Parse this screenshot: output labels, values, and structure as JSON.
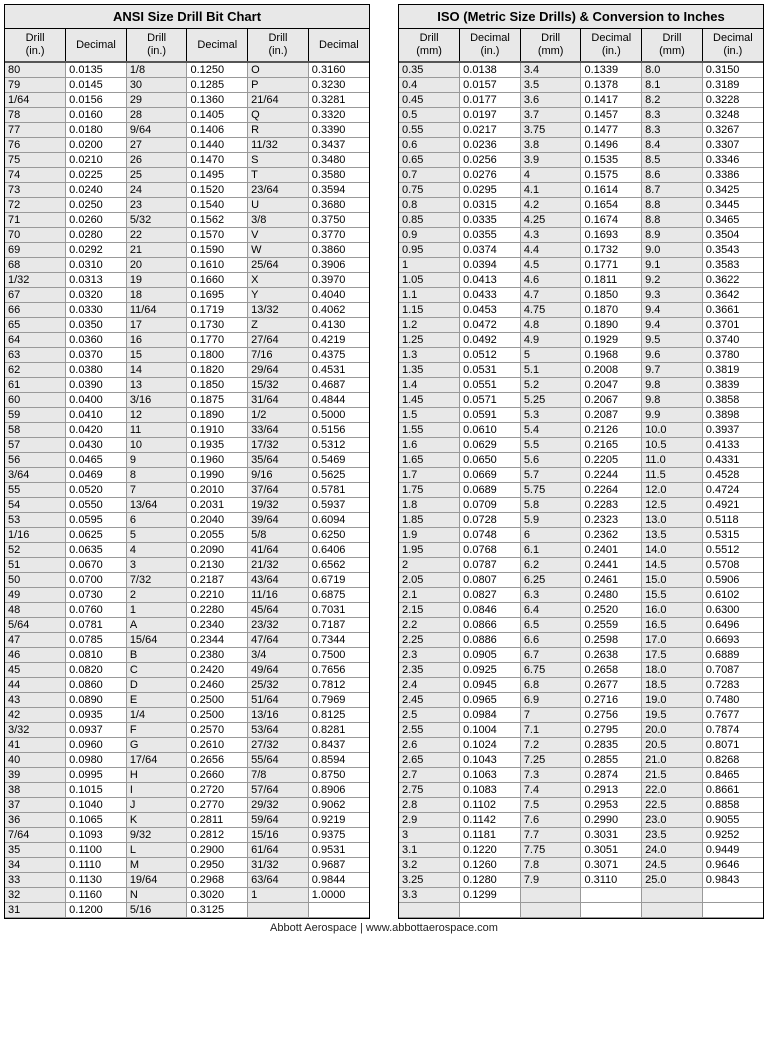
{
  "ansi": {
    "title": "ANSI Size Drill Bit Chart",
    "columns": [
      "Drill (in.)",
      "Decimal",
      "Drill (in.)",
      "Decimal",
      "Drill (in.)",
      "Decimal"
    ],
    "rows": [
      [
        "80",
        "0.0135",
        "1/8",
        "0.1250",
        "O",
        "0.3160"
      ],
      [
        "79",
        "0.0145",
        "30",
        "0.1285",
        "P",
        "0.3230"
      ],
      [
        "1/64",
        "0.0156",
        "29",
        "0.1360",
        "21/64",
        "0.3281"
      ],
      [
        "78",
        "0.0160",
        "28",
        "0.1405",
        "Q",
        "0.3320"
      ],
      [
        "77",
        "0.0180",
        "9/64",
        "0.1406",
        "R",
        "0.3390"
      ],
      [
        "76",
        "0.0200",
        "27",
        "0.1440",
        "11/32",
        "0.3437"
      ],
      [
        "75",
        "0.0210",
        "26",
        "0.1470",
        "S",
        "0.3480"
      ],
      [
        "74",
        "0.0225",
        "25",
        "0.1495",
        "T",
        "0.3580"
      ],
      [
        "73",
        "0.0240",
        "24",
        "0.1520",
        "23/64",
        "0.3594"
      ],
      [
        "72",
        "0.0250",
        "23",
        "0.1540",
        "U",
        "0.3680"
      ],
      [
        "71",
        "0.0260",
        "5/32",
        "0.1562",
        "3/8",
        "0.3750"
      ],
      [
        "70",
        "0.0280",
        "22",
        "0.1570",
        "V",
        "0.3770"
      ],
      [
        "69",
        "0.0292",
        "21",
        "0.1590",
        "W",
        "0.3860"
      ],
      [
        "68",
        "0.0310",
        "20",
        "0.1610",
        "25/64",
        "0.3906"
      ],
      [
        "1/32",
        "0.0313",
        "19",
        "0.1660",
        "X",
        "0.3970"
      ],
      [
        "67",
        "0.0320",
        "18",
        "0.1695",
        "Y",
        "0.4040"
      ],
      [
        "66",
        "0.0330",
        "11/64",
        "0.1719",
        "13/32",
        "0.4062"
      ],
      [
        "65",
        "0.0350",
        "17",
        "0.1730",
        "Z",
        "0.4130"
      ],
      [
        "64",
        "0.0360",
        "16",
        "0.1770",
        "27/64",
        "0.4219"
      ],
      [
        "63",
        "0.0370",
        "15",
        "0.1800",
        "7/16",
        "0.4375"
      ],
      [
        "62",
        "0.0380",
        "14",
        "0.1820",
        "29/64",
        "0.4531"
      ],
      [
        "61",
        "0.0390",
        "13",
        "0.1850",
        "15/32",
        "0.4687"
      ],
      [
        "60",
        "0.0400",
        "3/16",
        "0.1875",
        "31/64",
        "0.4844"
      ],
      [
        "59",
        "0.0410",
        "12",
        "0.1890",
        "1/2",
        "0.5000"
      ],
      [
        "58",
        "0.0420",
        "11",
        "0.1910",
        "33/64",
        "0.5156"
      ],
      [
        "57",
        "0.0430",
        "10",
        "0.1935",
        "17/32",
        "0.5312"
      ],
      [
        "56",
        "0.0465",
        "9",
        "0.1960",
        "35/64",
        "0.5469"
      ],
      [
        "3/64",
        "0.0469",
        "8",
        "0.1990",
        "9/16",
        "0.5625"
      ],
      [
        "55",
        "0.0520",
        "7",
        "0.2010",
        "37/64",
        "0.5781"
      ],
      [
        "54",
        "0.0550",
        "13/64",
        "0.2031",
        "19/32",
        "0.5937"
      ],
      [
        "53",
        "0.0595",
        "6",
        "0.2040",
        "39/64",
        "0.6094"
      ],
      [
        "1/16",
        "0.0625",
        "5",
        "0.2055",
        "5/8",
        "0.6250"
      ],
      [
        "52",
        "0.0635",
        "4",
        "0.2090",
        "41/64",
        "0.6406"
      ],
      [
        "51",
        "0.0670",
        "3",
        "0.2130",
        "21/32",
        "0.6562"
      ],
      [
        "50",
        "0.0700",
        "7/32",
        "0.2187",
        "43/64",
        "0.6719"
      ],
      [
        "49",
        "0.0730",
        "2",
        "0.2210",
        "11/16",
        "0.6875"
      ],
      [
        "48",
        "0.0760",
        "1",
        "0.2280",
        "45/64",
        "0.7031"
      ],
      [
        "5/64",
        "0.0781",
        "A",
        "0.2340",
        "23/32",
        "0.7187"
      ],
      [
        "47",
        "0.0785",
        "15/64",
        "0.2344",
        "47/64",
        "0.7344"
      ],
      [
        "46",
        "0.0810",
        "B",
        "0.2380",
        "3/4",
        "0.7500"
      ],
      [
        "45",
        "0.0820",
        "C",
        "0.2420",
        "49/64",
        "0.7656"
      ],
      [
        "44",
        "0.0860",
        "D",
        "0.2460",
        "25/32",
        "0.7812"
      ],
      [
        "43",
        "0.0890",
        "E",
        "0.2500",
        "51/64",
        "0.7969"
      ],
      [
        "42",
        "0.0935",
        "1/4",
        "0.2500",
        "13/16",
        "0.8125"
      ],
      [
        "3/32",
        "0.0937",
        "F",
        "0.2570",
        "53/64",
        "0.8281"
      ],
      [
        "41",
        "0.0960",
        "G",
        "0.2610",
        "27/32",
        "0.8437"
      ],
      [
        "40",
        "0.0980",
        "17/64",
        "0.2656",
        "55/64",
        "0.8594"
      ],
      [
        "39",
        "0.0995",
        "H",
        "0.2660",
        "7/8",
        "0.8750"
      ],
      [
        "38",
        "0.1015",
        "I",
        "0.2720",
        "57/64",
        "0.8906"
      ],
      [
        "37",
        "0.1040",
        "J",
        "0.2770",
        "29/32",
        "0.9062"
      ],
      [
        "36",
        "0.1065",
        "K",
        "0.2811",
        "59/64",
        "0.9219"
      ],
      [
        "7/64",
        "0.1093",
        "9/32",
        "0.2812",
        "15/16",
        "0.9375"
      ],
      [
        "35",
        "0.1100",
        "L",
        "0.2900",
        "61/64",
        "0.9531"
      ],
      [
        "34",
        "0.1110",
        "M",
        "0.2950",
        "31/32",
        "0.9687"
      ],
      [
        "33",
        "0.1130",
        "19/64",
        "0.2968",
        "63/64",
        "0.9844"
      ],
      [
        "32",
        "0.1160",
        "N",
        "0.3020",
        "1",
        "1.0000"
      ],
      [
        "31",
        "0.1200",
        "5/16",
        "0.3125",
        "",
        ""
      ]
    ]
  },
  "iso": {
    "title": "ISO (Metric Size Drills) & Conversion to Inches",
    "columns": [
      "Drill (mm)",
      "Decimal (in.)",
      "Drill (mm)",
      "Decimal (in.)",
      "Drill (mm)",
      "Decimal (in.)"
    ],
    "rows": [
      [
        "0.35",
        "0.0138",
        "3.4",
        "0.1339",
        "8.0",
        "0.3150"
      ],
      [
        "0.4",
        "0.0157",
        "3.5",
        "0.1378",
        "8.1",
        "0.3189"
      ],
      [
        "0.45",
        "0.0177",
        "3.6",
        "0.1417",
        "8.2",
        "0.3228"
      ],
      [
        "0.5",
        "0.0197",
        "3.7",
        "0.1457",
        "8.3",
        "0.3248"
      ],
      [
        "0.55",
        "0.0217",
        "3.75",
        "0.1477",
        "8.3",
        "0.3267"
      ],
      [
        "0.6",
        "0.0236",
        "3.8",
        "0.1496",
        "8.4",
        "0.3307"
      ],
      [
        "0.65",
        "0.0256",
        "3.9",
        "0.1535",
        "8.5",
        "0.3346"
      ],
      [
        "0.7",
        "0.0276",
        "4",
        "0.1575",
        "8.6",
        "0.3386"
      ],
      [
        "0.75",
        "0.0295",
        "4.1",
        "0.1614",
        "8.7",
        "0.3425"
      ],
      [
        "0.8",
        "0.0315",
        "4.2",
        "0.1654",
        "8.8",
        "0.3445"
      ],
      [
        "0.85",
        "0.0335",
        "4.25",
        "0.1674",
        "8.8",
        "0.3465"
      ],
      [
        "0.9",
        "0.0355",
        "4.3",
        "0.1693",
        "8.9",
        "0.3504"
      ],
      [
        "0.95",
        "0.0374",
        "4.4",
        "0.1732",
        "9.0",
        "0.3543"
      ],
      [
        "1",
        "0.0394",
        "4.5",
        "0.1771",
        "9.1",
        "0.3583"
      ],
      [
        "1.05",
        "0.0413",
        "4.6",
        "0.1811",
        "9.2",
        "0.3622"
      ],
      [
        "1.1",
        "0.0433",
        "4.7",
        "0.1850",
        "9.3",
        "0.3642"
      ],
      [
        "1.15",
        "0.0453",
        "4.75",
        "0.1870",
        "9.4",
        "0.3661"
      ],
      [
        "1.2",
        "0.0472",
        "4.8",
        "0.1890",
        "9.4",
        "0.3701"
      ],
      [
        "1.25",
        "0.0492",
        "4.9",
        "0.1929",
        "9.5",
        "0.3740"
      ],
      [
        "1.3",
        "0.0512",
        "5",
        "0.1968",
        "9.6",
        "0.3780"
      ],
      [
        "1.35",
        "0.0531",
        "5.1",
        "0.2008",
        "9.7",
        "0.3819"
      ],
      [
        "1.4",
        "0.0551",
        "5.2",
        "0.2047",
        "9.8",
        "0.3839"
      ],
      [
        "1.45",
        "0.0571",
        "5.25",
        "0.2067",
        "9.8",
        "0.3858"
      ],
      [
        "1.5",
        "0.0591",
        "5.3",
        "0.2087",
        "9.9",
        "0.3898"
      ],
      [
        "1.55",
        "0.0610",
        "5.4",
        "0.2126",
        "10.0",
        "0.3937"
      ],
      [
        "1.6",
        "0.0629",
        "5.5",
        "0.2165",
        "10.5",
        "0.4133"
      ],
      [
        "1.65",
        "0.0650",
        "5.6",
        "0.2205",
        "11.0",
        "0.4331"
      ],
      [
        "1.7",
        "0.0669",
        "5.7",
        "0.2244",
        "11.5",
        "0.4528"
      ],
      [
        "1.75",
        "0.0689",
        "5.75",
        "0.2264",
        "12.0",
        "0.4724"
      ],
      [
        "1.8",
        "0.0709",
        "5.8",
        "0.2283",
        "12.5",
        "0.4921"
      ],
      [
        "1.85",
        "0.0728",
        "5.9",
        "0.2323",
        "13.0",
        "0.5118"
      ],
      [
        "1.9",
        "0.0748",
        "6",
        "0.2362",
        "13.5",
        "0.5315"
      ],
      [
        "1.95",
        "0.0768",
        "6.1",
        "0.2401",
        "14.0",
        "0.5512"
      ],
      [
        "2",
        "0.0787",
        "6.2",
        "0.2441",
        "14.5",
        "0.5708"
      ],
      [
        "2.05",
        "0.0807",
        "6.25",
        "0.2461",
        "15.0",
        "0.5906"
      ],
      [
        "2.1",
        "0.0827",
        "6.3",
        "0.2480",
        "15.5",
        "0.6102"
      ],
      [
        "2.15",
        "0.0846",
        "6.4",
        "0.2520",
        "16.0",
        "0.6300"
      ],
      [
        "2.2",
        "0.0866",
        "6.5",
        "0.2559",
        "16.5",
        "0.6496"
      ],
      [
        "2.25",
        "0.0886",
        "6.6",
        "0.2598",
        "17.0",
        "0.6693"
      ],
      [
        "2.3",
        "0.0905",
        "6.7",
        "0.2638",
        "17.5",
        "0.6889"
      ],
      [
        "2.35",
        "0.0925",
        "6.75",
        "0.2658",
        "18.0",
        "0.7087"
      ],
      [
        "2.4",
        "0.0945",
        "6.8",
        "0.2677",
        "18.5",
        "0.7283"
      ],
      [
        "2.45",
        "0.0965",
        "6.9",
        "0.2716",
        "19.0",
        "0.7480"
      ],
      [
        "2.5",
        "0.0984",
        "7",
        "0.2756",
        "19.5",
        "0.7677"
      ],
      [
        "2.55",
        "0.1004",
        "7.1",
        "0.2795",
        "20.0",
        "0.7874"
      ],
      [
        "2.6",
        "0.1024",
        "7.2",
        "0.2835",
        "20.5",
        "0.8071"
      ],
      [
        "2.65",
        "0.1043",
        "7.25",
        "0.2855",
        "21.0",
        "0.8268"
      ],
      [
        "2.7",
        "0.1063",
        "7.3",
        "0.2874",
        "21.5",
        "0.8465"
      ],
      [
        "2.75",
        "0.1083",
        "7.4",
        "0.2913",
        "22.0",
        "0.8661"
      ],
      [
        "2.8",
        "0.1102",
        "7.5",
        "0.2953",
        "22.5",
        "0.8858"
      ],
      [
        "2.9",
        "0.1142",
        "7.6",
        "0.2990",
        "23.0",
        "0.9055"
      ],
      [
        "3",
        "0.1181",
        "7.7",
        "0.3031",
        "23.5",
        "0.9252"
      ],
      [
        "3.1",
        "0.1220",
        "7.75",
        "0.3051",
        "24.0",
        "0.9449"
      ],
      [
        "3.2",
        "0.1260",
        "7.8",
        "0.3071",
        "24.5",
        "0.9646"
      ],
      [
        "3.25",
        "0.1280",
        "7.9",
        "0.3110",
        "25.0",
        "0.9843"
      ],
      [
        "3.3",
        "0.1299",
        "",
        "",
        "",
        ""
      ],
      [
        "",
        "",
        "",
        "",
        "",
        ""
      ]
    ]
  },
  "footer": "Abbott Aerospace | www.abbottaerospace.com"
}
